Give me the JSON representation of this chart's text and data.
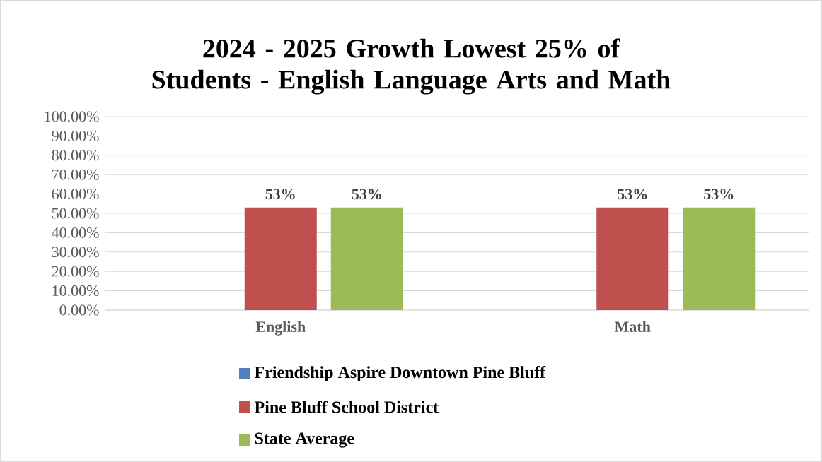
{
  "chart_data": {
    "type": "bar",
    "title": "2024 - 2025 Growth Lowest 25% of Students - English Language Arts and Math",
    "categories": [
      "English",
      "Math"
    ],
    "series": [
      {
        "name": "Friendship Aspire Downtown Pine Bluff",
        "color": "#4f81bd",
        "values": [
          null,
          null
        ]
      },
      {
        "name": "Pine Bluff School District",
        "color": "#c0504d",
        "values": [
          53,
          53
        ],
        "value_labels": [
          "53%",
          "53%"
        ]
      },
      {
        "name": "State Average",
        "color": "#9bbb59",
        "values": [
          53,
          53
        ],
        "value_labels": [
          "53%",
          "53%"
        ]
      }
    ],
    "ylim": [
      0,
      100
    ],
    "yticks": [
      {
        "value": 0,
        "label": "0.00%"
      },
      {
        "value": 10,
        "label": "10.00%"
      },
      {
        "value": 20,
        "label": "20.00%"
      },
      {
        "value": 30,
        "label": "30.00%"
      },
      {
        "value": 40,
        "label": "40.00%"
      },
      {
        "value": 50,
        "label": "50.00%"
      },
      {
        "value": 60,
        "label": "60.00%"
      },
      {
        "value": 70,
        "label": "70.00%"
      },
      {
        "value": 80,
        "label": "80.00%"
      },
      {
        "value": 90,
        "label": "90.00%"
      },
      {
        "value": 100,
        "label": "100.00%"
      }
    ],
    "grid": "y",
    "legend": "bottom"
  }
}
